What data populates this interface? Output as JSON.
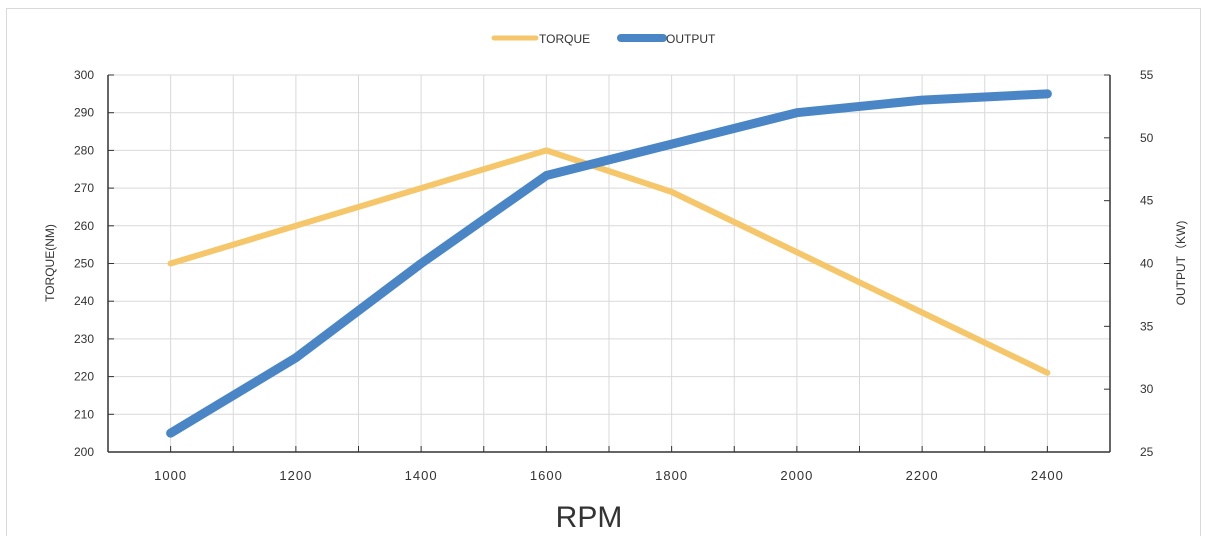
{
  "chart_data": {
    "type": "line",
    "x_label": "RPM",
    "y_left_label": "TORQUE(NM)",
    "y_right_label": "OUTPUT（KW)",
    "x": [
      1000,
      1200,
      1400,
      1600,
      1800,
      2000,
      2200,
      2400
    ],
    "x_ticks": [
      "1000",
      "1200",
      "1400",
      "1600",
      "1800",
      "2000",
      "2200",
      "2400"
    ],
    "y_left_range": [
      200,
      300
    ],
    "y_left_ticks": [
      "200",
      "210",
      "220",
      "230",
      "240",
      "250",
      "260",
      "270",
      "280",
      "290",
      "300"
    ],
    "y_right_range": [
      25,
      55
    ],
    "y_right_ticks": [
      "25",
      "30",
      "35",
      "40",
      "45",
      "50",
      "55"
    ],
    "grid": true,
    "legend_position": "top-center",
    "series": [
      {
        "name": "TORQUE",
        "axis": "left",
        "color": "#f5c76a",
        "values": [
          250,
          260,
          270,
          280,
          269,
          253,
          237,
          221
        ]
      },
      {
        "name": "OUTPUT",
        "axis": "right",
        "color": "#4a86c5",
        "values": [
          26.5,
          32.5,
          40.0,
          47.0,
          49.5,
          52.0,
          53.0,
          53.5
        ]
      }
    ]
  }
}
